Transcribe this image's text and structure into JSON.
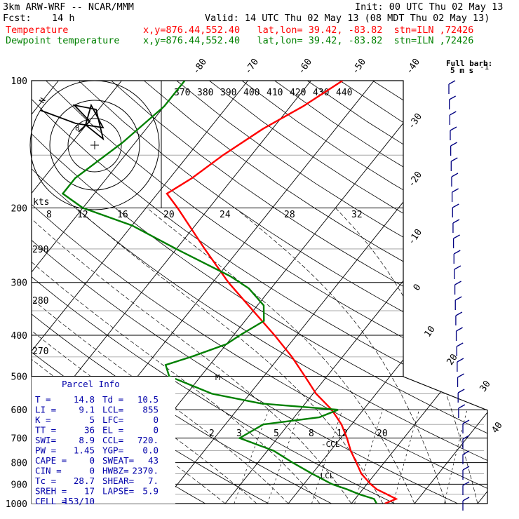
{
  "header": {
    "model": "3km ARW-WRF -- NCAR/MMM",
    "init": "Init: 00 UTC Thu 02 May 13",
    "fcst_label": "Fcst:",
    "fcst_value": "14 h",
    "valid": "Valid: 14 UTC Thu 02 May 13 (08 MDT Thu 02 May 13)",
    "temp_label": "Temperature",
    "temp_info": "x,y=876.44,552.40   lat,lon= 39.42, -83.82  stn=ILN ,72426",
    "dew_label": "Dewpoint temperature",
    "dew_info": "x,y=876.44,552.40   lat,lon= 39.42, -83.82  stn=ILN ,72426"
  },
  "colors": {
    "temperature": "#ff0000",
    "dewpoint": "#008000",
    "frame": "#000000"
  },
  "chart_data": {
    "type": "line",
    "pressure_labels": [
      "100",
      "200",
      "300",
      "400",
      "500",
      "600",
      "700",
      "800",
      "900",
      "1000"
    ],
    "skewed_temp_labels": [
      "-80",
      "-70",
      "-60",
      "-50",
      "-40",
      "-30",
      "-20",
      "-10",
      "0",
      "10",
      "20",
      "30",
      "40"
    ],
    "theta_labels": [
      "370",
      "380",
      "390",
      "400",
      "410",
      "420",
      "430",
      "440"
    ],
    "mixing_ratio_top": [
      "8",
      "12",
      "16",
      "20",
      "24",
      "28",
      "32"
    ],
    "mixing_ratio_low": [
      "2",
      "3",
      "5",
      "8",
      "12",
      "20"
    ],
    "side_theta_labels": [
      "290",
      "280",
      "270"
    ],
    "kts_label": "kts",
    "barb_legend": {
      "line1": "Full barb:",
      "line2": "5 m s",
      "sup": "-1"
    },
    "series": [
      {
        "name": "Temperature",
        "points": [
          [
            1000,
            15.3
          ],
          [
            975,
            16.5
          ],
          [
            950,
            14.4
          ],
          [
            925,
            12.2
          ],
          [
            900,
            10.6
          ],
          [
            850,
            7.8
          ],
          [
            800,
            5.6
          ],
          [
            750,
            3.2
          ],
          [
            700,
            1.0
          ],
          [
            650,
            -1.6
          ],
          [
            600,
            -5.0
          ],
          [
            550,
            -9.5
          ],
          [
            500,
            -13.5
          ],
          [
            450,
            -18.0
          ],
          [
            400,
            -23.5
          ],
          [
            350,
            -30.0
          ],
          [
            300,
            -37.5
          ],
          [
            250,
            -45.5
          ],
          [
            200,
            -55.0
          ],
          [
            185,
            -58.5
          ],
          [
            170,
            -56.5
          ],
          [
            150,
            -54.5
          ],
          [
            130,
            -51.5
          ],
          [
            115,
            -48.0
          ],
          [
            100,
            -45.0
          ]
        ]
      },
      {
        "name": "Dewpoint temperature",
        "points": [
          [
            1000,
            14.0
          ],
          [
            975,
            13.0
          ],
          [
            950,
            10.0
          ],
          [
            925,
            7.5
          ],
          [
            900,
            4.5
          ],
          [
            850,
            0.0
          ],
          [
            800,
            -4.5
          ],
          [
            750,
            -9.0
          ],
          [
            700,
            -16.0
          ],
          [
            650,
            -14.0
          ],
          [
            625,
            -6.0
          ],
          [
            600,
            -4.0
          ],
          [
            580,
            -17.0
          ],
          [
            550,
            -26.0
          ],
          [
            500,
            -35.0
          ],
          [
            470,
            -37.0
          ],
          [
            450,
            -34.0
          ],
          [
            420,
            -30.0
          ],
          [
            400,
            -29.0
          ],
          [
            370,
            -27.0
          ],
          [
            340,
            -29.0
          ],
          [
            310,
            -33.5
          ],
          [
            290,
            -38.0
          ],
          [
            250,
            -50.0
          ],
          [
            220,
            -60.0
          ],
          [
            200,
            -70.0
          ],
          [
            185,
            -75.0
          ],
          [
            170,
            -75.0
          ],
          [
            140,
            -72.0
          ],
          [
            115,
            -70.0
          ],
          [
            100,
            -70.0
          ]
        ]
      }
    ],
    "lcl_labels": [
      "CCL",
      "LCL"
    ],
    "wind_marker": "M",
    "hodograph_labels": [
      "N",
      "8"
    ],
    "parcel_info": {
      "title": "Parcel Info",
      "rows": [
        [
          "T  =",
          "14.8",
          "Td =",
          "10.5"
        ],
        [
          "LI =",
          "9.1",
          "LCL=",
          "855"
        ],
        [
          "K  =",
          "5",
          "LFC=",
          "0"
        ],
        [
          "TT =",
          "36",
          "EL =",
          "0"
        ],
        [
          "SWI=",
          "8.9",
          "CCL=",
          "720."
        ],
        [
          "PW =",
          "1.45",
          "YGP=",
          "0.0"
        ],
        [
          "CAPE =",
          "0",
          "SWEAT=",
          "43"
        ],
        [
          "CIN  =",
          "0",
          "HWBZ=",
          "2370."
        ],
        [
          "Tc   =",
          "28.7",
          "SHEAR=",
          "7."
        ],
        [
          "SREH =",
          "17",
          "LAPSE=",
          "5.9"
        ],
        [
          "CELL =",
          "153/10",
          "",
          ""
        ]
      ]
    }
  }
}
